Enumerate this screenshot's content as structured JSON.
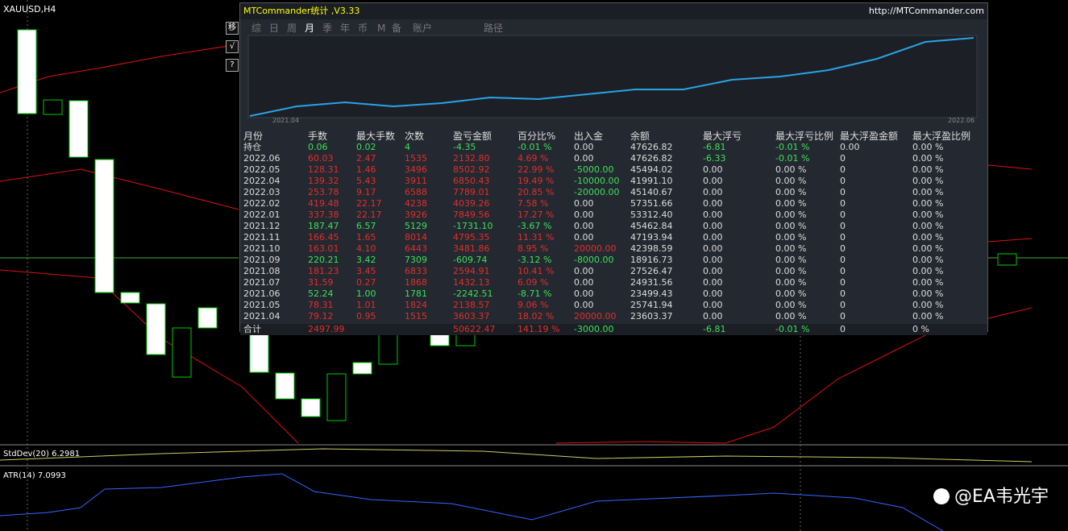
{
  "terminal": {
    "symbol": "XAUUSD,H4",
    "buttons": [
      "移",
      "√",
      "?"
    ],
    "stddev": "StdDev(20) 6.2981",
    "atr": "ATR(14) 7.0993",
    "watermark": "@EA韦光宇"
  },
  "panel": {
    "title": "MTCommander统计 ,V3.33",
    "url": "http://MTCommander.com",
    "tabs": [
      "综",
      "日",
      "周",
      "月",
      "季",
      "年",
      "币",
      "M",
      "备",
      "账户",
      "路径"
    ],
    "curve_start": "2021.04",
    "curve_end": "2022.06"
  },
  "table": {
    "header": [
      "月份",
      "手数",
      "最大手数",
      "次数",
      "盈亏金额",
      "百分比%",
      "出入金",
      "余额",
      "最大浮亏",
      "最大浮亏比例",
      "最大浮盈金额",
      "最大浮盈比例"
    ],
    "rows": [
      [
        "持仓",
        "0.06",
        "0.02",
        "4",
        "-4.35",
        "-0.01 %",
        "0.00",
        "47626.82",
        "-6.81",
        "-0.01 %",
        "0.00",
        "0.00 %"
      ],
      [
        "2022.06",
        "60.03",
        "2.47",
        "1535",
        "2132.80",
        "4.69 %",
        "0.00",
        "47626.82",
        "-6.33",
        "-0.01 %",
        "0",
        "0.00 %"
      ],
      [
        "2022.05",
        "128.31",
        "1.46",
        "3496",
        "8502.92",
        "22.99 %",
        "-5000.00",
        "45494.02",
        "0.00",
        "0.00 %",
        "0",
        "0.00 %"
      ],
      [
        "2022.04",
        "139.32",
        "5.43",
        "3911",
        "6850.43",
        "19.49 %",
        "-10000.00",
        "41991.10",
        "0.00",
        "0.00 %",
        "0",
        "0.00 %"
      ],
      [
        "2022.03",
        "253.78",
        "9.17",
        "6588",
        "7789.01",
        "20.85 %",
        "-20000.00",
        "45140.67",
        "0.00",
        "0.00 %",
        "0",
        "0.00 %"
      ],
      [
        "2022.02",
        "419.48",
        "22.17",
        "4238",
        "4039.26",
        "7.58 %",
        "0.00",
        "57351.66",
        "0.00",
        "0.00 %",
        "0",
        "0.00 %"
      ],
      [
        "2022.01",
        "337.38",
        "22.17",
        "3926",
        "7849.56",
        "17.27 %",
        "0.00",
        "53312.40",
        "0.00",
        "0.00 %",
        "0",
        "0.00 %"
      ],
      [
        "2021.12",
        "187.47",
        "6.57",
        "5129",
        "-1731.10",
        "-3.67 %",
        "0.00",
        "45462.84",
        "0.00",
        "0.00 %",
        "0",
        "0.00 %"
      ],
      [
        "2021.11",
        "166.45",
        "1.65",
        "8014",
        "4795.35",
        "11.31 %",
        "0.00",
        "47193.94",
        "0.00",
        "0.00 %",
        "0",
        "0.00 %"
      ],
      [
        "2021.10",
        "163.01",
        "4.10",
        "6443",
        "3481.86",
        "8.95 %",
        "20000.00",
        "42398.59",
        "0.00",
        "0.00 %",
        "0",
        "0.00 %"
      ],
      [
        "2021.09",
        "220.21",
        "3.42",
        "7309",
        "-609.74",
        "-3.12 %",
        "-8000.00",
        "18916.73",
        "0.00",
        "0.00 %",
        "0",
        "0.00 %"
      ],
      [
        "2021.08",
        "181.23",
        "3.45",
        "6833",
        "2594.91",
        "10.41 %",
        "0.00",
        "27526.47",
        "0.00",
        "0.00 %",
        "0",
        "0.00 %"
      ],
      [
        "2021.07",
        "31.59",
        "0.27",
        "1868",
        "1432.13",
        "6.09 %",
        "0.00",
        "24931.56",
        "0.00",
        "0.00 %",
        "0",
        "0.00 %"
      ],
      [
        "2021.06",
        "52.24",
        "1.00",
        "1781",
        "-2242.51",
        "-8.71 %",
        "0.00",
        "23499.43",
        "0.00",
        "0.00 %",
        "0",
        "0.00 %"
      ],
      [
        "2021.05",
        "78.31",
        "1.01",
        "1824",
        "2138.57",
        "9.06 %",
        "0.00",
        "25741.94",
        "0.00",
        "0.00 %",
        "0",
        "0.00 %"
      ],
      [
        "2021.04",
        "79.12",
        "0.95",
        "1515",
        "3603.37",
        "18.02 %",
        "20000.00",
        "23603.37",
        "0.00",
        "0.00 %",
        "0",
        "0.00 %"
      ],
      [
        "合计",
        "2497.99",
        null,
        null,
        "50622.47",
        "141.19 %",
        "-3000.00",
        null,
        "-6.81",
        "-0.01 %",
        "0",
        "0 %"
      ]
    ]
  }
}
